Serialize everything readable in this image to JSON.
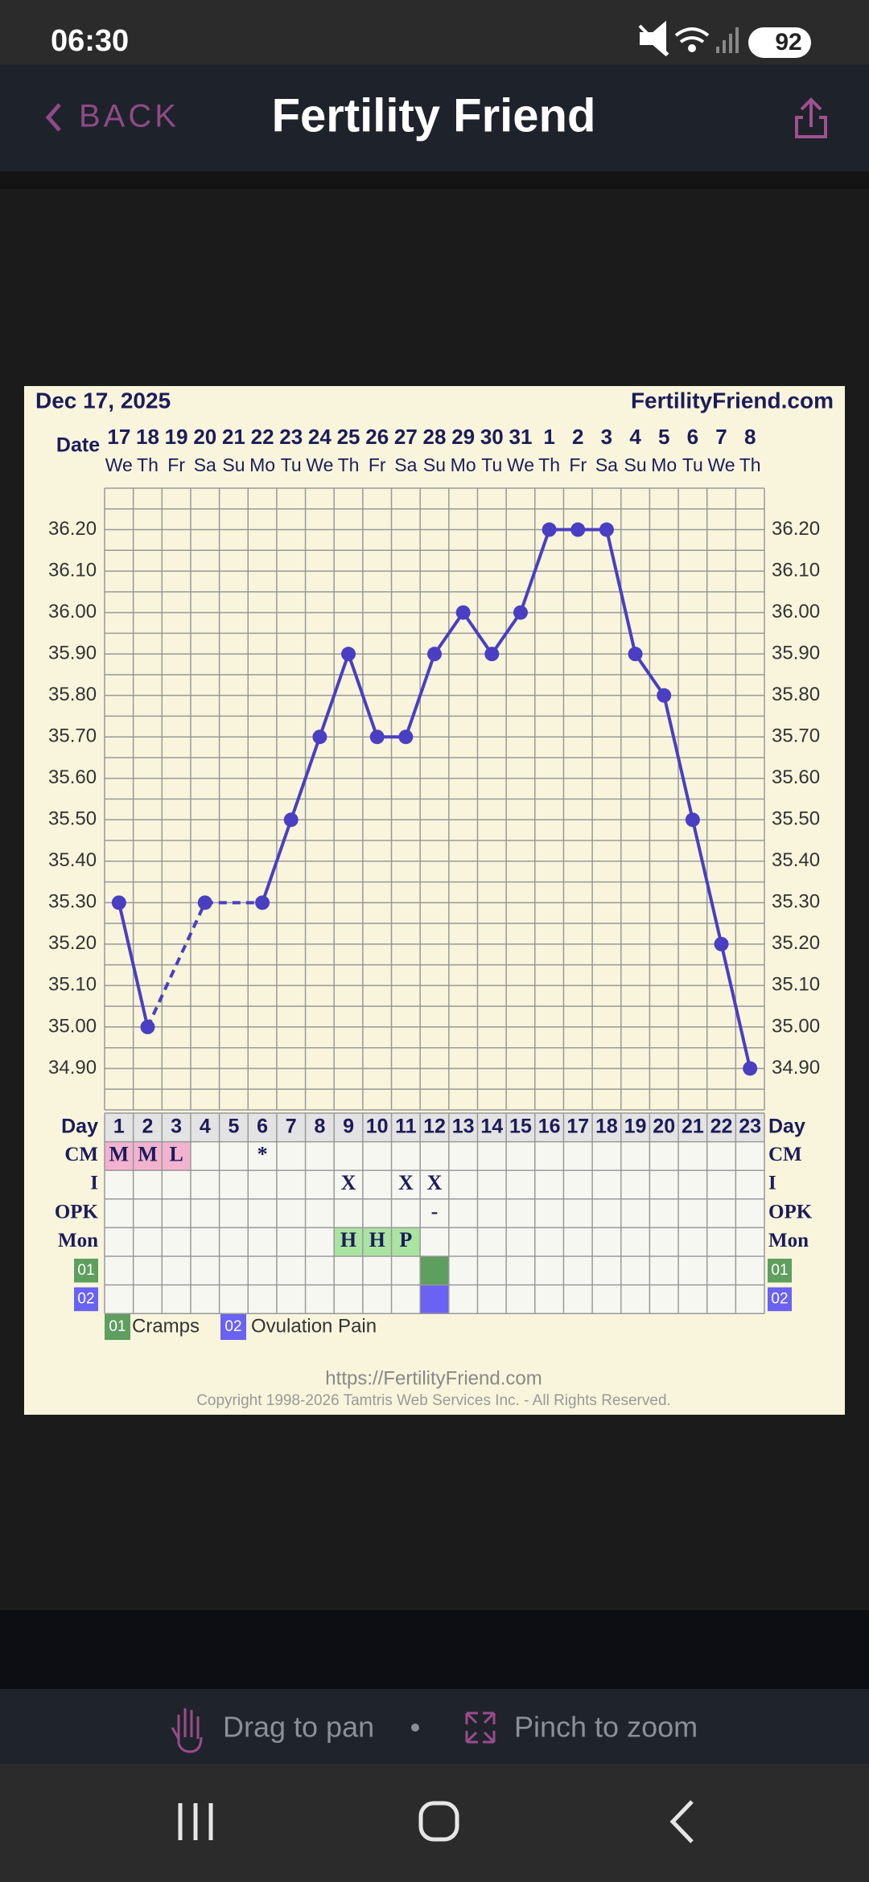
{
  "status_bar": {
    "time": "06:30",
    "battery": "92"
  },
  "header": {
    "back": "BACK",
    "title": "Fertility Friend"
  },
  "chart_data": {
    "type": "line",
    "title": "Dec 17, 2025",
    "site": "FertilityFriend.com",
    "date_label": "Date",
    "categories": [
      "17",
      "18",
      "19",
      "20",
      "21",
      "22",
      "23",
      "24",
      "25",
      "26",
      "27",
      "28",
      "29",
      "30",
      "31",
      "1",
      "2",
      "3",
      "4",
      "5",
      "6",
      "7",
      "8"
    ],
    "weekdays": [
      "We",
      "Th",
      "Fr",
      "Sa",
      "Su",
      "Mo",
      "Tu",
      "We",
      "Th",
      "Fr",
      "Sa",
      "Su",
      "Mo",
      "Tu",
      "We",
      "Th",
      "Fr",
      "Sa",
      "Su",
      "Mo",
      "Tu",
      "We",
      "Th"
    ],
    "values": [
      35.3,
      35.0,
      null,
      35.3,
      null,
      35.3,
      35.5,
      35.7,
      35.9,
      35.7,
      35.7,
      35.9,
      36.0,
      35.9,
      36.0,
      36.2,
      36.2,
      36.2,
      35.9,
      35.8,
      35.5,
      35.2,
      34.9
    ],
    "color": "#4a3fc2",
    "ylim": [
      34.8,
      36.3
    ],
    "yticks": [
      {
        "value": 34.9,
        "label": "34.90"
      },
      {
        "value": 35.0,
        "label": "35.00"
      },
      {
        "value": 35.1,
        "label": "35.10"
      },
      {
        "value": 35.2,
        "label": "35.20"
      },
      {
        "value": 35.3,
        "label": "35.30"
      },
      {
        "value": 35.4,
        "label": "35.40"
      },
      {
        "value": 35.5,
        "label": "35.50"
      },
      {
        "value": 35.6,
        "label": "35.60"
      },
      {
        "value": 35.7,
        "label": "35.70"
      },
      {
        "value": 35.8,
        "label": "35.80"
      },
      {
        "value": 35.9,
        "label": "35.90"
      },
      {
        "value": 36.0,
        "label": "36.00"
      },
      {
        "value": 36.1,
        "label": "36.10"
      },
      {
        "value": 36.2,
        "label": "36.20"
      }
    ],
    "grid": true
  },
  "observations": {
    "day_label": "Day",
    "days": [
      1,
      2,
      3,
      4,
      5,
      6,
      7,
      8,
      9,
      10,
      11,
      12,
      13,
      14,
      15,
      16,
      17,
      18,
      19,
      20,
      21,
      22,
      23
    ],
    "rows": [
      {
        "label": "CM",
        "entries": [
          {
            "day": 1,
            "text": "M",
            "color": "#f2b3cf"
          },
          {
            "day": 2,
            "text": "M",
            "color": "#f2b3cf"
          },
          {
            "day": 3,
            "text": "L",
            "color": "#f2b3cf"
          },
          {
            "day": 6,
            "text": "*"
          }
        ]
      },
      {
        "label": "I",
        "entries": [
          {
            "day": 9,
            "text": "X"
          },
          {
            "day": 11,
            "text": "X"
          },
          {
            "day": 12,
            "text": "X"
          }
        ]
      },
      {
        "label": "OPK",
        "entries": [
          {
            "day": 12,
            "text": "-"
          }
        ]
      },
      {
        "label": "Mon",
        "entries": [
          {
            "day": 9,
            "text": "H",
            "color": "#a9e4a0"
          },
          {
            "day": 10,
            "text": "H",
            "color": "#a9e4a0"
          },
          {
            "day": 11,
            "text": "P",
            "color": "#a9e4a0"
          }
        ]
      }
    ],
    "symbol_rows": [
      {
        "label": "01",
        "color": "#5e9e5e",
        "days": [
          12
        ]
      },
      {
        "label": "02",
        "color": "#6a62f2",
        "days": [
          12
        ]
      }
    ]
  },
  "legend": [
    "Cramps",
    "Ovulation Pain"
  ],
  "footer": {
    "url": "https://FertilityFriend.com",
    "copyright": "Copyright 1998-2026 Tamtris Web Services Inc. - All Rights Reserved."
  },
  "hints": {
    "pan": "Drag to pan",
    "zoom": "Pinch to zoom"
  }
}
